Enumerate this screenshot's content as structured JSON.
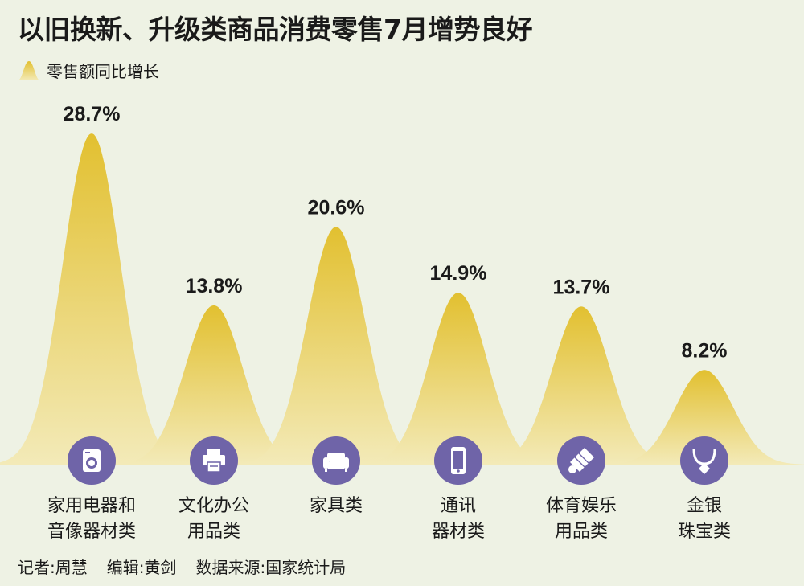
{
  "title": "以旧换新、升级类商品消费零售7月增势良好",
  "legend": {
    "label": "零售额同比增长"
  },
  "colors": {
    "peak_top": "#e2c030",
    "peak_bottom": "#f3eab8",
    "icon_circle": "#6f64a8",
    "text": "#1a1a1a",
    "background": "#eef2e4"
  },
  "credits": {
    "reporter": "记者:周慧",
    "editor": "编辑:黄剑",
    "source": "数据来源:国家统计局"
  },
  "chart_data": {
    "type": "area",
    "title": "以旧换新、升级类商品消费零售7月增势良好",
    "ylabel": "零售额同比增长",
    "unit": "%",
    "ylim": [
      0,
      30
    ],
    "categories": [
      [
        "家用电器和",
        "音像器材类"
      ],
      [
        "文化办公",
        "用品类"
      ],
      [
        "家具类"
      ],
      [
        "通讯",
        "器材类"
      ],
      [
        "体育娱乐",
        "用品类"
      ],
      [
        "金银",
        "珠宝类"
      ]
    ],
    "values": [
      28.7,
      13.8,
      20.6,
      14.9,
      13.7,
      8.2
    ],
    "value_labels": [
      "28.7%",
      "13.8%",
      "20.6%",
      "14.9%",
      "13.7%",
      "8.2%"
    ],
    "icons": [
      "washing-machine-icon",
      "printer-icon",
      "sofa-icon",
      "mobile-phone-icon",
      "shuttlecock-icon",
      "necklace-icon"
    ]
  }
}
